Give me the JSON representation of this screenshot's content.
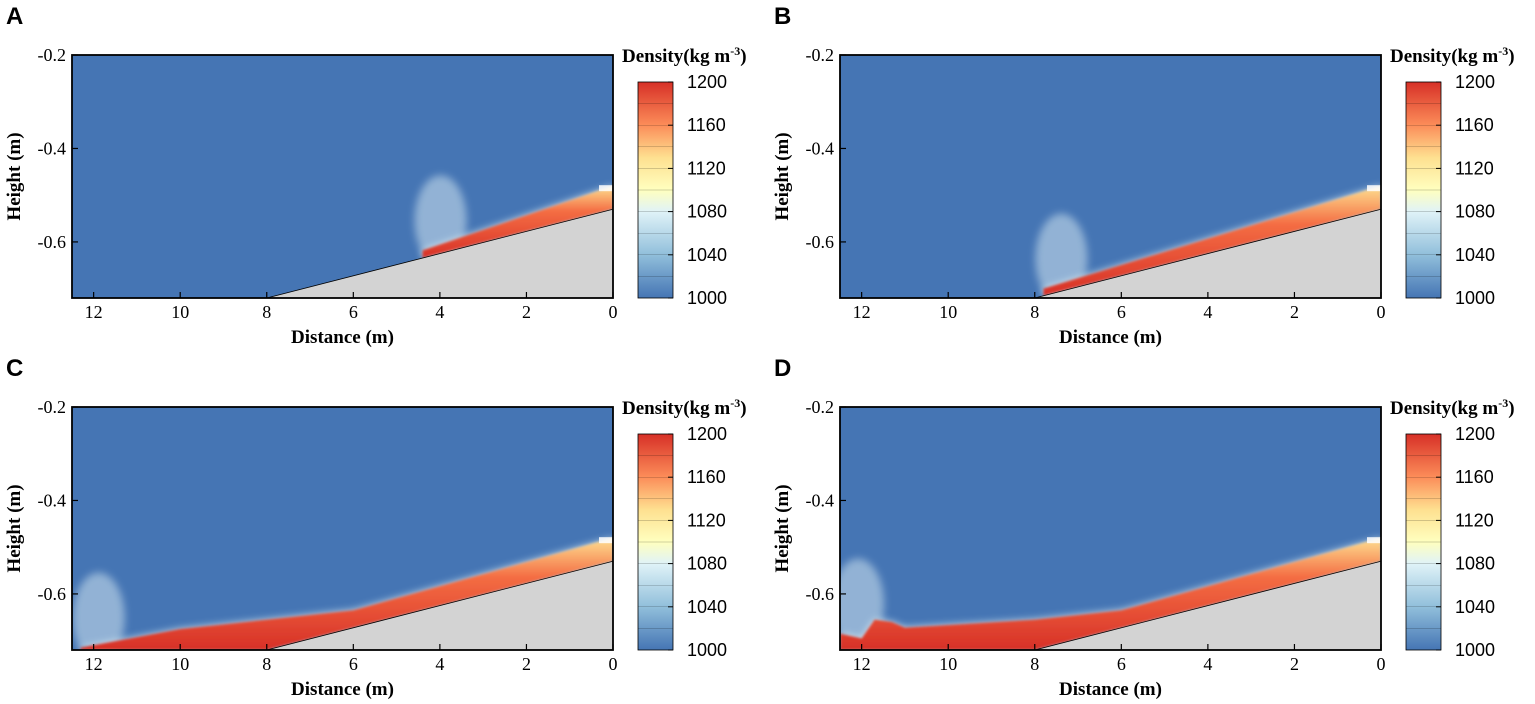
{
  "figure": {
    "domain_colors": {
      "water": "#4575b4",
      "slope": "#d3d3d3"
    }
  },
  "chart_data": [
    {
      "panel": "A",
      "type": "heatmap",
      "xlabel": "Distance (m)",
      "ylabel": "Height (m)",
      "xlim": [
        12.5,
        0
      ],
      "ylim": [
        -0.72,
        -0.2
      ],
      "xticks": [
        12,
        10,
        8,
        6,
        4,
        2,
        0
      ],
      "yticks": [
        -0.2,
        -0.4,
        -0.6
      ],
      "slope_line": {
        "x": [
          8,
          0
        ],
        "y": [
          -0.72,
          -0.53
        ]
      },
      "current_front_distance": 4.4,
      "current_layer": {
        "x": [
          4.4,
          0
        ],
        "top": [
          -0.618,
          -0.48
        ]
      },
      "colorbar": {
        "title": "Density(kg m",
        "title_sup": "-3",
        "title_end": ")",
        "ticks": [
          1200,
          1160,
          1120,
          1080,
          1040,
          1000
        ],
        "range": [
          1000,
          1200
        ]
      }
    },
    {
      "panel": "B",
      "type": "heatmap",
      "xlabel": "Distance (m)",
      "ylabel": "Height (m)",
      "xlim": [
        12.5,
        0
      ],
      "ylim": [
        -0.72,
        -0.2
      ],
      "xticks": [
        12,
        10,
        8,
        6,
        4,
        2,
        0
      ],
      "yticks": [
        -0.2,
        -0.4,
        -0.6
      ],
      "slope_line": {
        "x": [
          8,
          0
        ],
        "y": [
          -0.72,
          -0.53
        ]
      },
      "current_front_distance": 7.8,
      "current_layer": {
        "x": [
          7.8,
          0
        ],
        "top": [
          -0.7,
          -0.48
        ]
      },
      "colorbar": {
        "title": "Density(kg m",
        "title_sup": "-3",
        "title_end": ")",
        "ticks": [
          1200,
          1160,
          1120,
          1080,
          1040,
          1000
        ],
        "range": [
          1000,
          1200
        ]
      }
    },
    {
      "panel": "C",
      "type": "heatmap",
      "xlabel": "Distance (m)",
      "ylabel": "Height (m)",
      "xlim": [
        12.5,
        0
      ],
      "ylim": [
        -0.72,
        -0.2
      ],
      "xticks": [
        12,
        10,
        8,
        6,
        4,
        2,
        0
      ],
      "yticks": [
        -0.2,
        -0.4,
        -0.6
      ],
      "slope_line": {
        "x": [
          8,
          0
        ],
        "y": [
          -0.72,
          -0.53
        ]
      },
      "current_front_distance": 12.3,
      "current_layer": {
        "x": [
          12.3,
          10,
          8,
          6,
          0
        ],
        "top": [
          -0.715,
          -0.675,
          -0.655,
          -0.635,
          -0.48
        ]
      },
      "colorbar": {
        "title": "Density(kg m",
        "title_sup": "-3",
        "title_end": ")",
        "ticks": [
          1200,
          1160,
          1120,
          1080,
          1040,
          1000
        ],
        "range": [
          1000,
          1200
        ]
      }
    },
    {
      "panel": "D",
      "type": "heatmap",
      "xlabel": "Distance (m)",
      "ylabel": "Height (m)",
      "xlim": [
        12.5,
        0
      ],
      "ylim": [
        -0.72,
        -0.2
      ],
      "xticks": [
        12,
        10,
        8,
        6,
        4,
        2,
        0
      ],
      "yticks": [
        -0.2,
        -0.4,
        -0.6
      ],
      "slope_line": {
        "x": [
          8,
          0
        ],
        "y": [
          -0.72,
          -0.53
        ]
      },
      "current_front_distance": 12.5,
      "current_layer": {
        "x": [
          12.5,
          12.0,
          11.7,
          11.3,
          11.0,
          8,
          6,
          0
        ],
        "top": [
          -0.685,
          -0.695,
          -0.655,
          -0.66,
          -0.672,
          -0.655,
          -0.635,
          -0.48
        ]
      },
      "colorbar": {
        "title": "Density(kg m",
        "title_sup": "-3",
        "title_end": ")",
        "ticks": [
          1200,
          1160,
          1120,
          1080,
          1040,
          1000
        ],
        "range": [
          1000,
          1200
        ]
      }
    }
  ]
}
